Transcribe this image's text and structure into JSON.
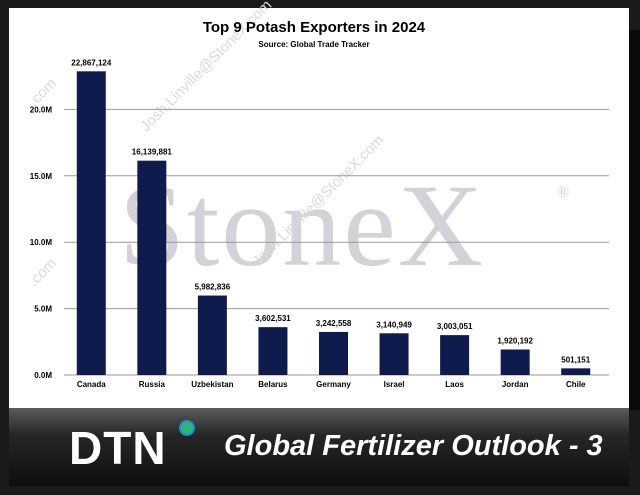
{
  "footer": {
    "logo_text": "DTN",
    "title": "Global Fertilizer Outlook - 3"
  },
  "watermark": {
    "brand": "StoneX",
    "registered": "®",
    "emails": [
      "Josh.Linville@StoneX.com",
      "Josh.Linville@StoneX.com",
      ".com",
      ".com"
    ]
  },
  "chart_data": {
    "type": "bar",
    "title": "Top 9 Potash Exporters in 2024",
    "subtitle": "Source: Global Trade Tracker",
    "xlabel": "",
    "ylabel": "",
    "categories": [
      "Canada",
      "Russia",
      "Uzbekistan",
      "Belarus",
      "Germany",
      "Israel",
      "Laos",
      "Jordan",
      "Chile"
    ],
    "values": [
      22867124,
      16139881,
      5982836,
      3602531,
      3242558,
      3140949,
      3003051,
      1920192,
      501151
    ],
    "data_labels": [
      "22,867,124",
      "16,139,881",
      "5,982,836",
      "3,602,531",
      "3,242,558",
      "3,140,949",
      "3,003,051",
      "1,920,192",
      "501,151"
    ],
    "ylim": [
      0,
      25000000
    ],
    "yticks": [
      0,
      5000000,
      10000000,
      15000000,
      20000000
    ],
    "ytick_labels": [
      "0.0M",
      "5.0M",
      "10.0M",
      "15.0M",
      "20.0M"
    ],
    "grid": true,
    "legend": "none",
    "bar_color": "#0f1b4c"
  }
}
